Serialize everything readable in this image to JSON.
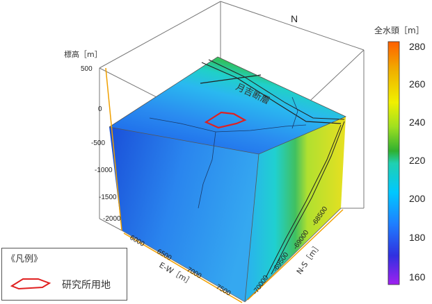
{
  "figure": {
    "north_label": "N",
    "fault_label": "月吉断層",
    "elevation_axis": {
      "label": "標高［m］",
      "ticks": [
        "500",
        "0",
        "-500",
        "-1000",
        "-1500",
        "-2000"
      ]
    },
    "ew_axis": {
      "label": "E-W［m］",
      "ticks": [
        "6000",
        "6500",
        "7000",
        "7500"
      ]
    },
    "ns_axis": {
      "label": "N-S［m］",
      "ticks": [
        "-68500",
        "-69000",
        "-69500",
        "-70000"
      ]
    },
    "colorbar": {
      "title": "全水頭［m］",
      "ticks": [
        "280",
        "260",
        "240",
        "220",
        "200",
        "180",
        "160"
      ],
      "range": [
        160,
        280
      ],
      "colors": [
        "#a020f0",
        "#3030e0",
        "#1e7fff",
        "#00c8ff",
        "#20d0b0",
        "#30b030",
        "#a0e020",
        "#f0f000",
        "#f0b000",
        "#ff6000"
      ]
    }
  },
  "legend": {
    "title": "《凡例》",
    "item_label": "研究所用地",
    "item_color": "#e02020"
  }
}
